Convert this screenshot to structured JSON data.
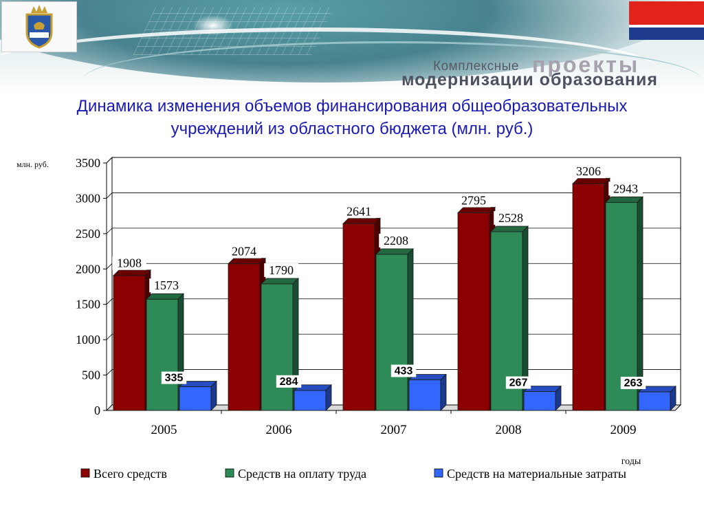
{
  "header": {
    "brand_small": "Комплексные",
    "brand_big1": "проекты",
    "brand_big2": "модернизации образования"
  },
  "title_line1": "Динамика изменения объемов финансирования общеобразовательных",
  "title_line2": "учреждений из областного бюджета (млн. руб.)",
  "colors": {
    "total": "#8b0000",
    "salary": "#2e8b57",
    "material": "#3366ff",
    "title": "#1a1ab3"
  },
  "chart_data": {
    "type": "bar",
    "categories": [
      "2005",
      "2006",
      "2007",
      "2008",
      "2009"
    ],
    "series": [
      {
        "name": "Всего средств",
        "values": [
          1908,
          2074,
          2641,
          2795,
          3206
        ]
      },
      {
        "name": "Средств на оплату труда",
        "values": [
          1573,
          1790,
          2208,
          2528,
          2943
        ]
      },
      {
        "name": "Средств на материальные затраты",
        "values": [
          335,
          284,
          433,
          267,
          263
        ]
      }
    ],
    "ylabel": "млн. руб.",
    "xlabel": "годы",
    "ylim": [
      0,
      3500
    ],
    "yticks": [
      0,
      500,
      1000,
      1500,
      2000,
      2500,
      3000,
      3500
    ],
    "grid": true,
    "legend": "bottom"
  }
}
